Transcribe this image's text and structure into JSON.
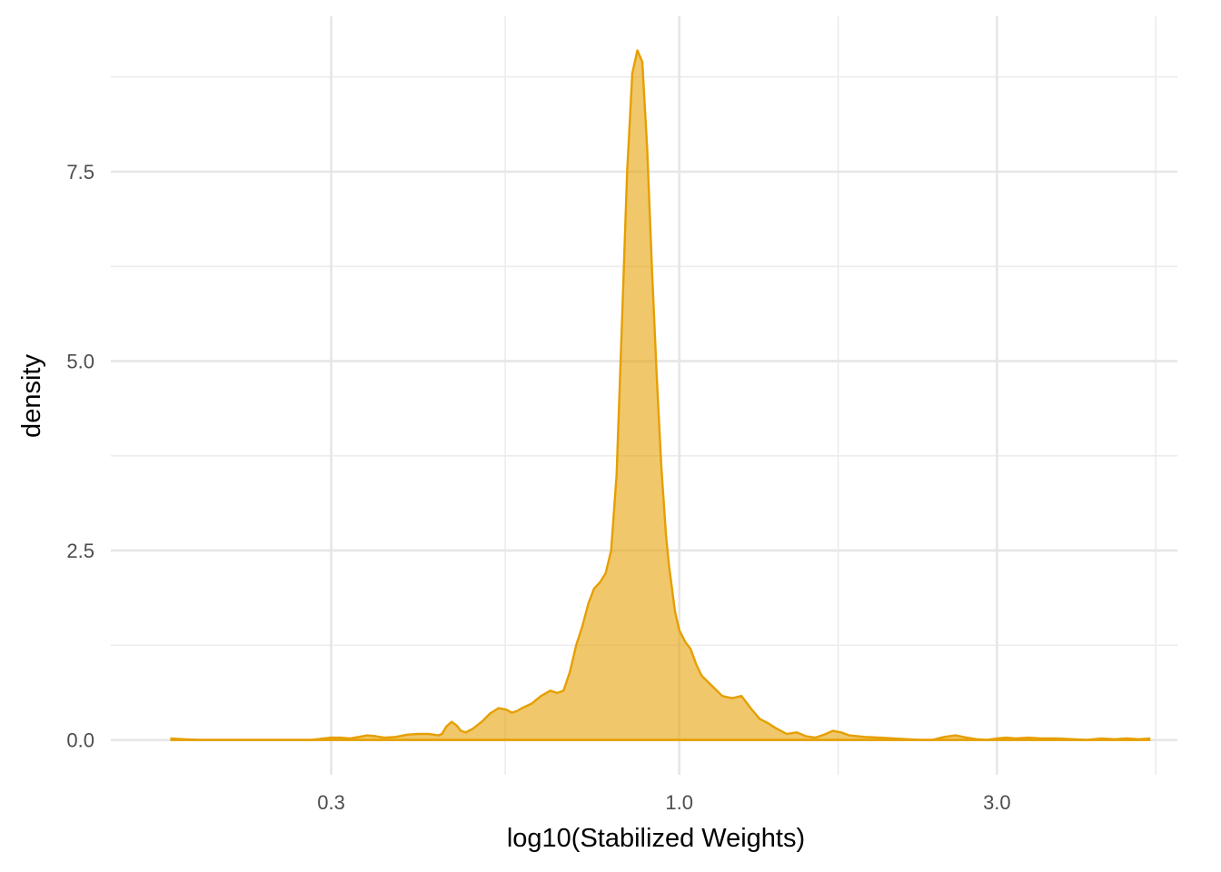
{
  "chart_data": {
    "type": "area",
    "title": "",
    "xlabel": "log10(Stabilized Weights)",
    "ylabel": "density",
    "x_scale": "log10",
    "x_ticks": [
      0.3,
      1.0,
      3.0
    ],
    "x_tick_labels": [
      "0.3",
      "1.0",
      "3.0"
    ],
    "x_minor_ticks": [
      0.5477,
      1.7321,
      5.1962
    ],
    "y_ticks": [
      0,
      2.5,
      5,
      7.5
    ],
    "y_tick_labels": [
      "0.0",
      "2.5",
      "5.0",
      "7.5"
    ],
    "y_minor_ticks": [
      1.25,
      3.75,
      6.25,
      8.75
    ],
    "xlim": [
      0.14,
      5.6
    ],
    "ylim": [
      -0.46,
      9.55
    ],
    "grid": true,
    "legend": "none",
    "fill_color": "#E69F00",
    "line_color": "#E69F00",
    "fill_opacity": 0.58,
    "series": [
      {
        "x": [
          0.172,
          0.18,
          0.19,
          0.2,
          0.22,
          0.24,
          0.26,
          0.28,
          0.3,
          0.31,
          0.32,
          0.33,
          0.34,
          0.35,
          0.36,
          0.375,
          0.39,
          0.405,
          0.42,
          0.435,
          0.44,
          0.447,
          0.455,
          0.463,
          0.47,
          0.478,
          0.49,
          0.505,
          0.52,
          0.535,
          0.55,
          0.56,
          0.57,
          0.58,
          0.6,
          0.62,
          0.64,
          0.655,
          0.67,
          0.685,
          0.7,
          0.715,
          0.73,
          0.745,
          0.76,
          0.775,
          0.79,
          0.805,
          0.82,
          0.835,
          0.85,
          0.865,
          0.88,
          0.895,
          0.91,
          0.925,
          0.94,
          0.955,
          0.965,
          0.975,
          0.985,
          1.0,
          1.02,
          1.04,
          1.06,
          1.08,
          1.1,
          1.13,
          1.16,
          1.2,
          1.24,
          1.28,
          1.32,
          1.36,
          1.4,
          1.45,
          1.5,
          1.55,
          1.6,
          1.65,
          1.7,
          1.75,
          1.8,
          1.9,
          2.0,
          2.1,
          2.2,
          2.3,
          2.4,
          2.5,
          2.6,
          2.7,
          2.8,
          2.9,
          3.0,
          3.1,
          3.2,
          3.35,
          3.5,
          3.7,
          3.9,
          4.1,
          4.3,
          4.5,
          4.7,
          4.9,
          5.1
        ],
        "y": [
          0.02,
          0.01,
          0.0,
          0.0,
          0.0,
          0.0,
          0.0,
          0.0,
          0.03,
          0.03,
          0.02,
          0.04,
          0.06,
          0.05,
          0.03,
          0.04,
          0.07,
          0.08,
          0.08,
          0.06,
          0.08,
          0.18,
          0.24,
          0.19,
          0.12,
          0.1,
          0.15,
          0.24,
          0.35,
          0.42,
          0.4,
          0.36,
          0.38,
          0.42,
          0.48,
          0.58,
          0.65,
          0.62,
          0.65,
          0.9,
          1.25,
          1.5,
          1.8,
          2.0,
          2.08,
          2.2,
          2.5,
          3.5,
          5.5,
          7.5,
          8.8,
          9.1,
          8.95,
          7.8,
          6.2,
          4.8,
          3.6,
          2.7,
          2.3,
          2.0,
          1.7,
          1.45,
          1.3,
          1.2,
          1.0,
          0.85,
          0.78,
          0.68,
          0.58,
          0.55,
          0.58,
          0.42,
          0.28,
          0.22,
          0.15,
          0.08,
          0.1,
          0.05,
          0.03,
          0.07,
          0.12,
          0.1,
          0.06,
          0.04,
          0.03,
          0.02,
          0.01,
          0.0,
          0.0,
          0.04,
          0.06,
          0.03,
          0.01,
          0.0,
          0.02,
          0.03,
          0.02,
          0.03,
          0.02,
          0.02,
          0.01,
          0.0,
          0.02,
          0.01,
          0.02,
          0.01,
          0.02
        ]
      }
    ]
  }
}
